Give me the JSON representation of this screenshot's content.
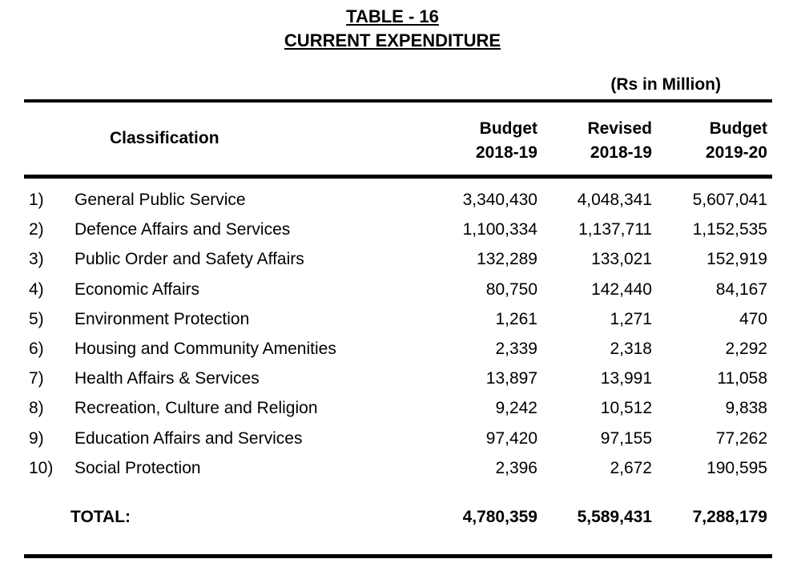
{
  "title": {
    "line1": "TABLE - 16",
    "line2": "CURRENT EXPENDITURE"
  },
  "unit": "(Rs in Million)",
  "headers": {
    "classification": "Classification",
    "col1_line1": "Budget",
    "col1_line2": "2018-19",
    "col2_line1": "Revised",
    "col2_line2": "2018-19",
    "col3_line1": "Budget",
    "col3_line2": "2019-20"
  },
  "rows": [
    {
      "num": "1)",
      "name": "General Public Service",
      "budget_2018_19": "3,340,430",
      "revised_2018_19": "4,048,341",
      "budget_2019_20": "5,607,041"
    },
    {
      "num": "2)",
      "name": "Defence Affairs and Services",
      "budget_2018_19": "1,100,334",
      "revised_2018_19": "1,137,711",
      "budget_2019_20": "1,152,535"
    },
    {
      "num": "3)",
      "name": "Public Order and Safety Affairs",
      "budget_2018_19": "132,289",
      "revised_2018_19": "133,021",
      "budget_2019_20": "152,919"
    },
    {
      "num": "4)",
      "name": "Economic Affairs",
      "budget_2018_19": "80,750",
      "revised_2018_19": "142,440",
      "budget_2019_20": "84,167"
    },
    {
      "num": "5)",
      "name": "Environment Protection",
      "budget_2018_19": "1,261",
      "revised_2018_19": "1,271",
      "budget_2019_20": "470"
    },
    {
      "num": "6)",
      "name": "Housing and Community Amenities",
      "budget_2018_19": "2,339",
      "revised_2018_19": "2,318",
      "budget_2019_20": "2,292"
    },
    {
      "num": "7)",
      "name": "Health Affairs & Services",
      "budget_2018_19": "13,897",
      "revised_2018_19": "13,991",
      "budget_2019_20": "11,058"
    },
    {
      "num": "8)",
      "name": "Recreation, Culture and Religion",
      "budget_2018_19": "9,242",
      "revised_2018_19": "10,512",
      "budget_2019_20": "9,838"
    },
    {
      "num": "9)",
      "name": "Education Affairs and Services",
      "budget_2018_19": "97,420",
      "revised_2018_19": "97,155",
      "budget_2019_20": "77,262"
    },
    {
      "num": "10)",
      "name": "Social Protection",
      "budget_2018_19": "2,396",
      "revised_2018_19": "2,672",
      "budget_2019_20": "190,595"
    }
  ],
  "total": {
    "label": "TOTAL:",
    "budget_2018_19": "4,780,359",
    "revised_2018_19": "5,589,431",
    "budget_2019_20": "7,288,179"
  }
}
